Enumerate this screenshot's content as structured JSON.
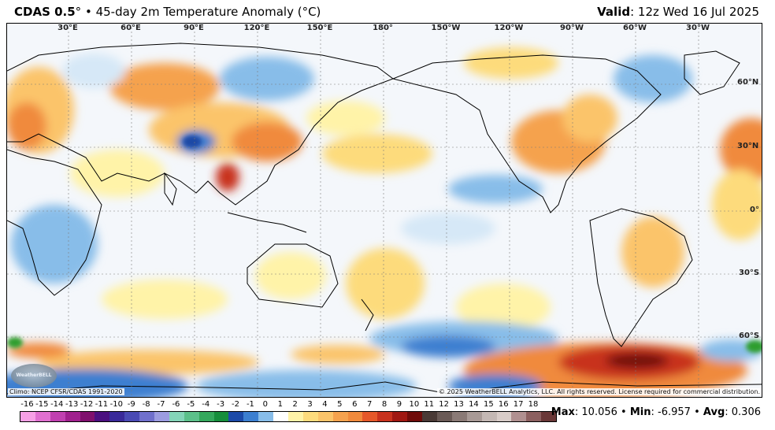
{
  "header": {
    "product": "CDAS 0.5",
    "degree_mark": "°",
    "bullet": "•",
    "description": "45-day 2m Temperature Anomaly (°C)",
    "valid_label": "Valid",
    "valid_time": ": 12z Wed 16 Jul 2025"
  },
  "map": {
    "projection": "cylindrical, Pacific-centered",
    "lon_labels": [
      "30°E",
      "60°E",
      "90°E",
      "120°E",
      "150°E",
      "180°",
      "150°W",
      "120°W",
      "90°W",
      "60°W",
      "30°W"
    ],
    "lat_labels": [
      "60°N",
      "30°N",
      "0°",
      "30°S",
      "60°S"
    ],
    "grid": "dotted",
    "colors": {
      "ocean_base": "#f4f7fb",
      "warm_light": "#fff3a8",
      "warm": "#fbc46a",
      "warmer": "#f08a3c",
      "hot": "#c8321e",
      "cool_light": "#d6e8f7",
      "cool": "#88bde9",
      "cooler": "#3c7fd0",
      "cold": "#1c49a6",
      "green_anom": "#2e9e2e"
    }
  },
  "footer": {
    "climo": "Climo: NCEP CFSR/CDAS 1991-2020",
    "copyright": "© 2025 WeatherBELL Analytics, LLC. All rights reserved. License required for commercial distribution.",
    "logo_text": "WeatherBELL"
  },
  "colorbar": {
    "ticks": [
      "-16",
      "-15",
      "-14",
      "-13",
      "-12",
      "-11",
      "-10",
      "-9",
      "-8",
      "-7",
      "-6",
      "-5",
      "-4",
      "-3",
      "-2",
      "-1",
      "0",
      "1",
      "2",
      "3",
      "4",
      "5",
      "6",
      "7",
      "8",
      "9",
      "10",
      "11",
      "12",
      "13",
      "14",
      "15",
      "16",
      "17",
      "18"
    ],
    "colors": [
      "#f7a0e6",
      "#e070d0",
      "#c040b0",
      "#a0208e",
      "#80106e",
      "#4b1080",
      "#3a2a9a",
      "#4a4ab4",
      "#7070cc",
      "#9c9ce0",
      "#84d4b8",
      "#5cc08a",
      "#34a85c",
      "#168e3c",
      "#1c4aa8",
      "#3c7fd0",
      "#88bde9",
      "#ffffff",
      "#fff3a8",
      "#fddb7c",
      "#fbc46a",
      "#f5a24e",
      "#f08a3c",
      "#e5582a",
      "#c8321e",
      "#a01812",
      "#700c0a",
      "#4a3a36",
      "#6a5a56",
      "#8a7a76",
      "#a89a96",
      "#c4b8b4",
      "#d8ccc8",
      "#b09090",
      "#8c6060",
      "#6a3838"
    ]
  },
  "stats": {
    "max_label": "Max",
    "max_value": ": 10.056",
    "min_label": "Min",
    "min_value": ": -6.957",
    "avg_label": "Avg",
    "avg_value": ": 0.306",
    "sep": "•"
  }
}
